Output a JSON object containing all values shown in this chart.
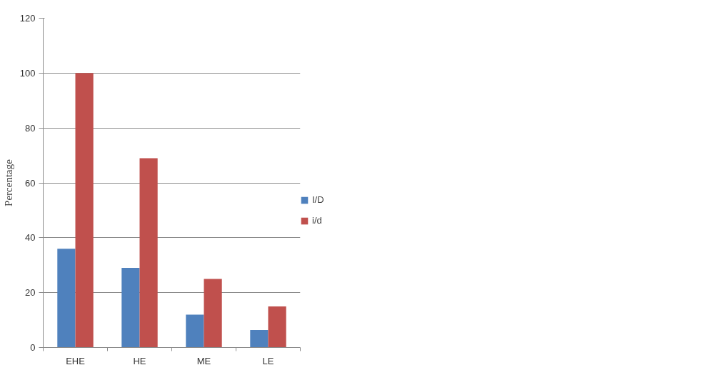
{
  "chart_data": {
    "type": "bar",
    "ylabel": "Percentage",
    "categories": [
      "EHE",
      "HE",
      "ME",
      "LE"
    ],
    "series": [
      {
        "name": "I/D",
        "color": "#4f81bd",
        "values": [
          36,
          29,
          12,
          6.4
        ]
      },
      {
        "name": "i/d",
        "color": "#c0504d",
        "values": [
          100,
          69,
          25,
          15
        ]
      }
    ],
    "ylim": [
      0,
      120
    ],
    "yticks": [
      0,
      20,
      40,
      60,
      80,
      100,
      120
    ],
    "grid": "y",
    "legend": "right"
  }
}
